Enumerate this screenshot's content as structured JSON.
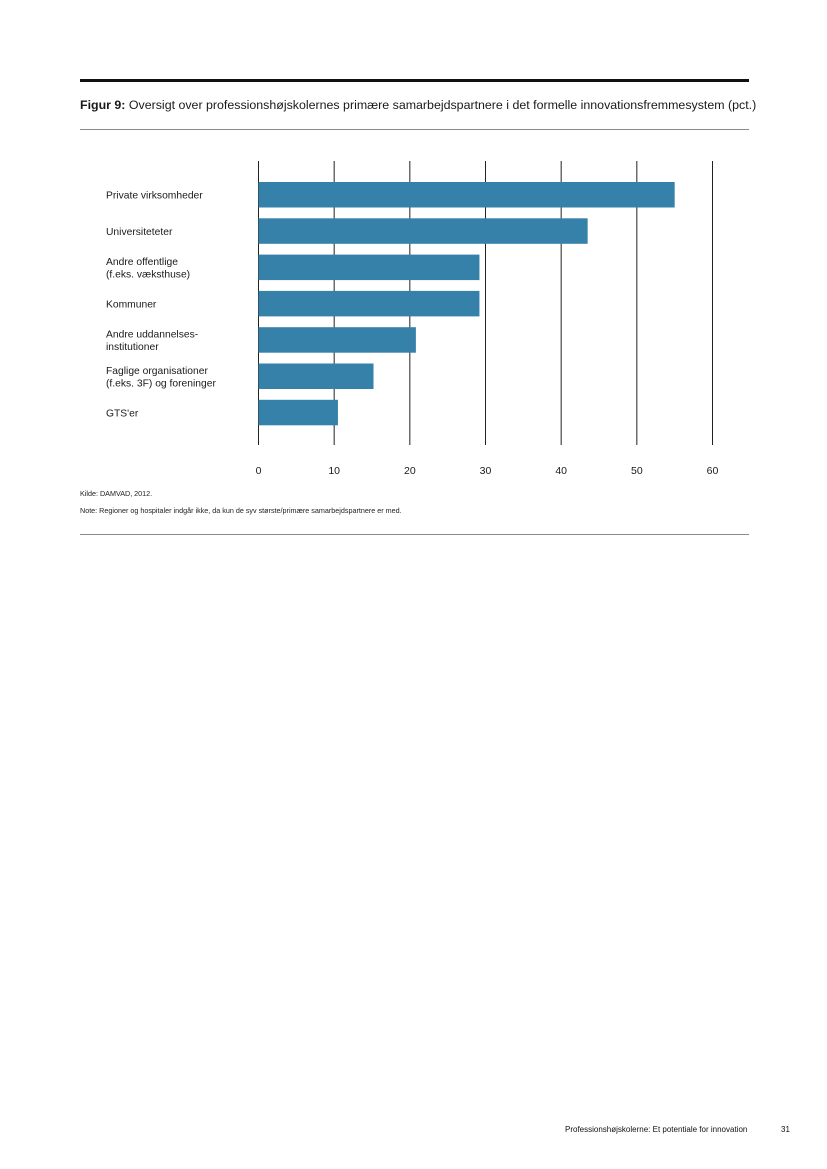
{
  "figure": {
    "label": "Figur 9:",
    "title": "Oversigt over professionshøjskolernes primære samarbejdspartnere i det formelle innovationsfremmesystem (pct.)"
  },
  "chart_data": {
    "type": "bar",
    "orientation": "horizontal",
    "categories": [
      [
        "Private virksomheder"
      ],
      [
        "Universiteteter"
      ],
      [
        "Andre offentlige",
        "(f.eks. væksthuse)"
      ],
      [
        "Kommuner"
      ],
      [
        "Andre uddannelses-",
        "institutioner"
      ],
      [
        "Faglige organisationer",
        "(f.eks. 3F) og foreninger"
      ],
      [
        "GTS'er"
      ]
    ],
    "values": [
      55,
      43.5,
      29.2,
      29.2,
      20.8,
      15.2,
      10.5
    ],
    "xlim": [
      0,
      60
    ],
    "xticks": [
      0,
      10,
      20,
      30,
      40,
      50,
      60
    ],
    "grid": "vertical",
    "bar_color": "#3581a9"
  },
  "notes": {
    "source": "Kilde: DAMVAD, 2012.",
    "note": "Note: Regioner og hospitaler indgår ikke, da kun de syv største/primære samarbejdspartnere er med."
  },
  "footer": {
    "doc_title": "Professionshøjskolerne:",
    "doc_subtitle": "Et potentiale for innovation",
    "page_number": "31"
  }
}
